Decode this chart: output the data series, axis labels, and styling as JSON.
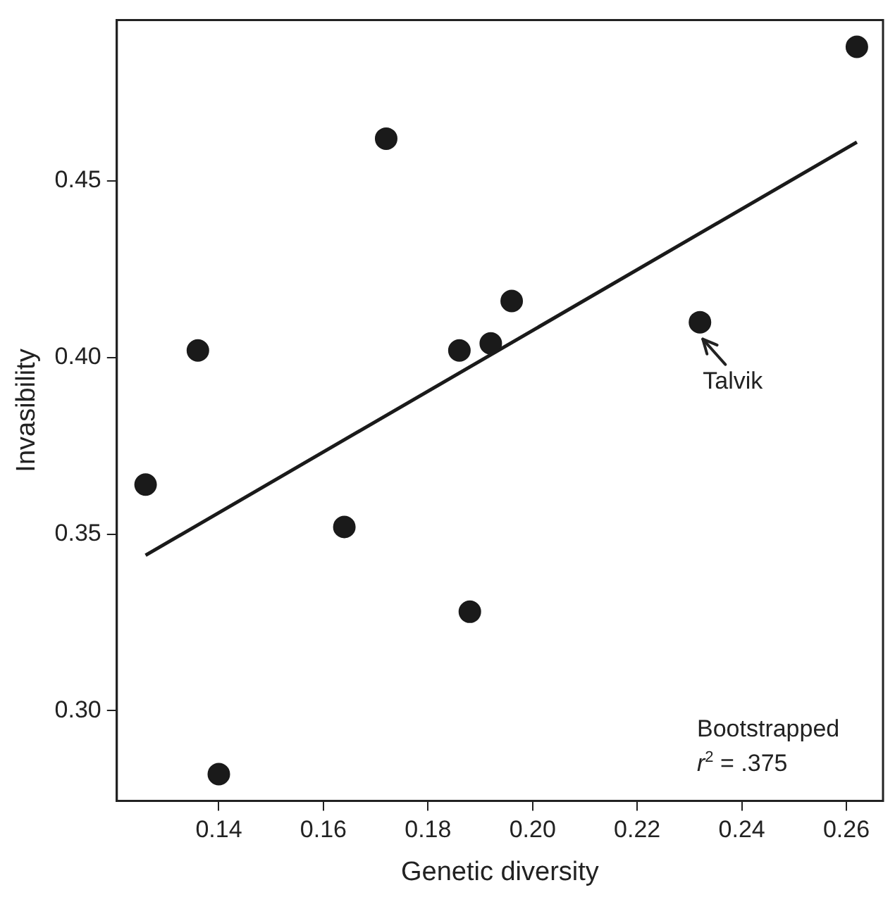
{
  "chart_data": {
    "type": "scatter",
    "xlabel": "Genetic diversity",
    "ylabel": "Invasibility",
    "xlim": [
      0.1205,
      0.267
    ],
    "ylim": [
      0.2744,
      0.4956
    ],
    "xticks": [
      {
        "value": 0.14,
        "label": "0.14"
      },
      {
        "value": 0.16,
        "label": "0.16"
      },
      {
        "value": 0.18,
        "label": "0.18"
      },
      {
        "value": 0.2,
        "label": "0.20"
      },
      {
        "value": 0.22,
        "label": "0.22"
      },
      {
        "value": 0.24,
        "label": "0.24"
      },
      {
        "value": 0.26,
        "label": "0.26"
      }
    ],
    "yticks": [
      {
        "value": 0.3,
        "label": "0.30"
      },
      {
        "value": 0.35,
        "label": "0.35"
      },
      {
        "value": 0.4,
        "label": "0.40"
      },
      {
        "value": 0.45,
        "label": "0.45"
      }
    ],
    "grid": false,
    "legend": false,
    "series": [
      {
        "marker": "circle",
        "color": "#1a1a1a",
        "x": [
          0.126,
          0.136,
          0.14,
          0.164,
          0.172,
          0.186,
          0.188,
          0.192,
          0.196,
          0.232,
          0.262
        ],
        "values": [
          0.364,
          0.402,
          0.282,
          0.352,
          0.462,
          0.402,
          0.328,
          0.404,
          0.416,
          0.41,
          0.488
        ]
      },
      {
        "type": "line",
        "color": "#1a1a1a",
        "x": [
          0.126,
          0.262
        ],
        "values": [
          0.344,
          0.461
        ]
      }
    ],
    "annotations": [
      {
        "text": "Talvik",
        "x": 0.232,
        "y": 0.41
      },
      "Bootstrapped",
      "r$^{2}$ = .375"
    ]
  }
}
